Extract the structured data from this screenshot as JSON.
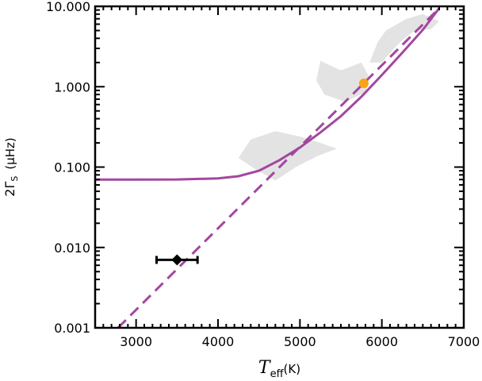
{
  "chart_data": {
    "type": "line",
    "x_scale": "linear",
    "y_scale": "log",
    "xlim": [
      2500,
      7000
    ],
    "ylim": [
      0.001,
      10
    ],
    "xticks": [
      3000,
      4000,
      5000,
      6000,
      7000
    ],
    "xtick_labels": [
      "3000",
      "4000",
      "5000",
      "6000",
      "7000"
    ],
    "yticks": [
      0.001,
      0.01,
      0.1,
      1,
      10
    ],
    "ytick_labels": [
      "0.001",
      "0.010",
      "0.100",
      "1.000",
      "10.000"
    ],
    "xlabel": {
      "main": "T",
      "sub": "eff",
      "unit": "(K)"
    },
    "ylabel": {
      "prefix": "2Γ",
      "sub": "S",
      "unit": "(μHz)"
    },
    "grid": false,
    "series": [
      {
        "style": "solid",
        "color": "#a3479f",
        "points": [
          [
            2500,
            0.07
          ],
          [
            3000,
            0.07
          ],
          [
            3500,
            0.0702
          ],
          [
            4000,
            0.0722
          ],
          [
            4250,
            0.077
          ],
          [
            4500,
            0.09
          ],
          [
            4750,
            0.122
          ],
          [
            5000,
            0.175
          ],
          [
            5250,
            0.27
          ],
          [
            5500,
            0.43
          ],
          [
            5750,
            0.75
          ],
          [
            6000,
            1.4
          ],
          [
            6250,
            2.65
          ],
          [
            6500,
            5.1
          ],
          [
            6700,
            9.5
          ]
        ]
      },
      {
        "style": "dashed",
        "color": "#a3479f",
        "points": [
          [
            2780,
            0.001
          ],
          [
            6700,
            9.5
          ]
        ]
      }
    ],
    "points": [
      {
        "x": 5780,
        "y": 1.1,
        "color": "#ffa114",
        "marker": "circle"
      },
      {
        "x": 3500,
        "y": 0.007,
        "xerr": 250,
        "color": "#000000",
        "marker": "diamond"
      }
    ],
    "regions": [
      {
        "color": "#e3e3e3",
        "points": [
          [
            4250,
            0.13
          ],
          [
            4400,
            0.22
          ],
          [
            4700,
            0.28
          ],
          [
            5000,
            0.24
          ],
          [
            5250,
            0.2
          ],
          [
            5450,
            0.17
          ],
          [
            5200,
            0.135
          ],
          [
            4950,
            0.1
          ],
          [
            4700,
            0.068
          ],
          [
            4450,
            0.095
          ]
        ]
      },
      {
        "color": "#e3e3e3",
        "points": [
          [
            5200,
            1.2
          ],
          [
            5250,
            2.1
          ],
          [
            5500,
            1.6
          ],
          [
            5750,
            2.0
          ],
          [
            5850,
            1.3
          ],
          [
            5800,
            0.85
          ],
          [
            5550,
            0.65
          ],
          [
            5300,
            0.8
          ]
        ]
      },
      {
        "color": "#e3e3e3",
        "points": [
          [
            5850,
            2.0
          ],
          [
            5950,
            3.6
          ],
          [
            6050,
            5.0
          ],
          [
            6300,
            7.0
          ],
          [
            6500,
            8.0
          ],
          [
            6700,
            6.5
          ],
          [
            6600,
            5.2
          ],
          [
            6400,
            5.0
          ],
          [
            6250,
            3.8
          ],
          [
            6150,
            3.0
          ],
          [
            6000,
            2.0
          ]
        ]
      }
    ]
  }
}
